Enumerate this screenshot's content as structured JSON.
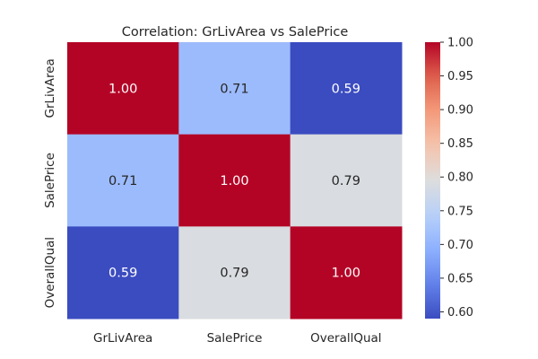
{
  "chart_data": {
    "type": "heatmap",
    "title": "Correlation: GrLivArea vs SalePrice",
    "xlabel": "",
    "ylabel": "",
    "x_labels": [
      "GrLivArea",
      "SalePrice",
      "OverallQual"
    ],
    "y_labels": [
      "GrLivArea",
      "SalePrice",
      "OverallQual"
    ],
    "values": [
      [
        1.0,
        0.71,
        0.59
      ],
      [
        0.71,
        1.0,
        0.79
      ],
      [
        0.59,
        0.79,
        1.0
      ]
    ],
    "cell_labels": [
      [
        "1.00",
        "0.71",
        "0.59"
      ],
      [
        "0.71",
        "1.00",
        "0.79"
      ],
      [
        "0.59",
        "0.79",
        "1.00"
      ]
    ],
    "colormap": "coolwarm",
    "vmin": 0.59,
    "vmax": 1.0,
    "colorbar_ticks": [
      0.6,
      0.65,
      0.7,
      0.75,
      0.8,
      0.85,
      0.9,
      0.95,
      1.0
    ],
    "colorbar_tick_labels": [
      "0.60",
      "0.65",
      "0.70",
      "0.75",
      "0.80",
      "0.85",
      "0.90",
      "0.95",
      "1.00"
    ],
    "colors": {
      "low": "#3b4cc0",
      "mid": "#dddcdc",
      "high": "#b40426",
      "text": "#262626"
    },
    "grid": false,
    "legend": "colorbar-right"
  }
}
